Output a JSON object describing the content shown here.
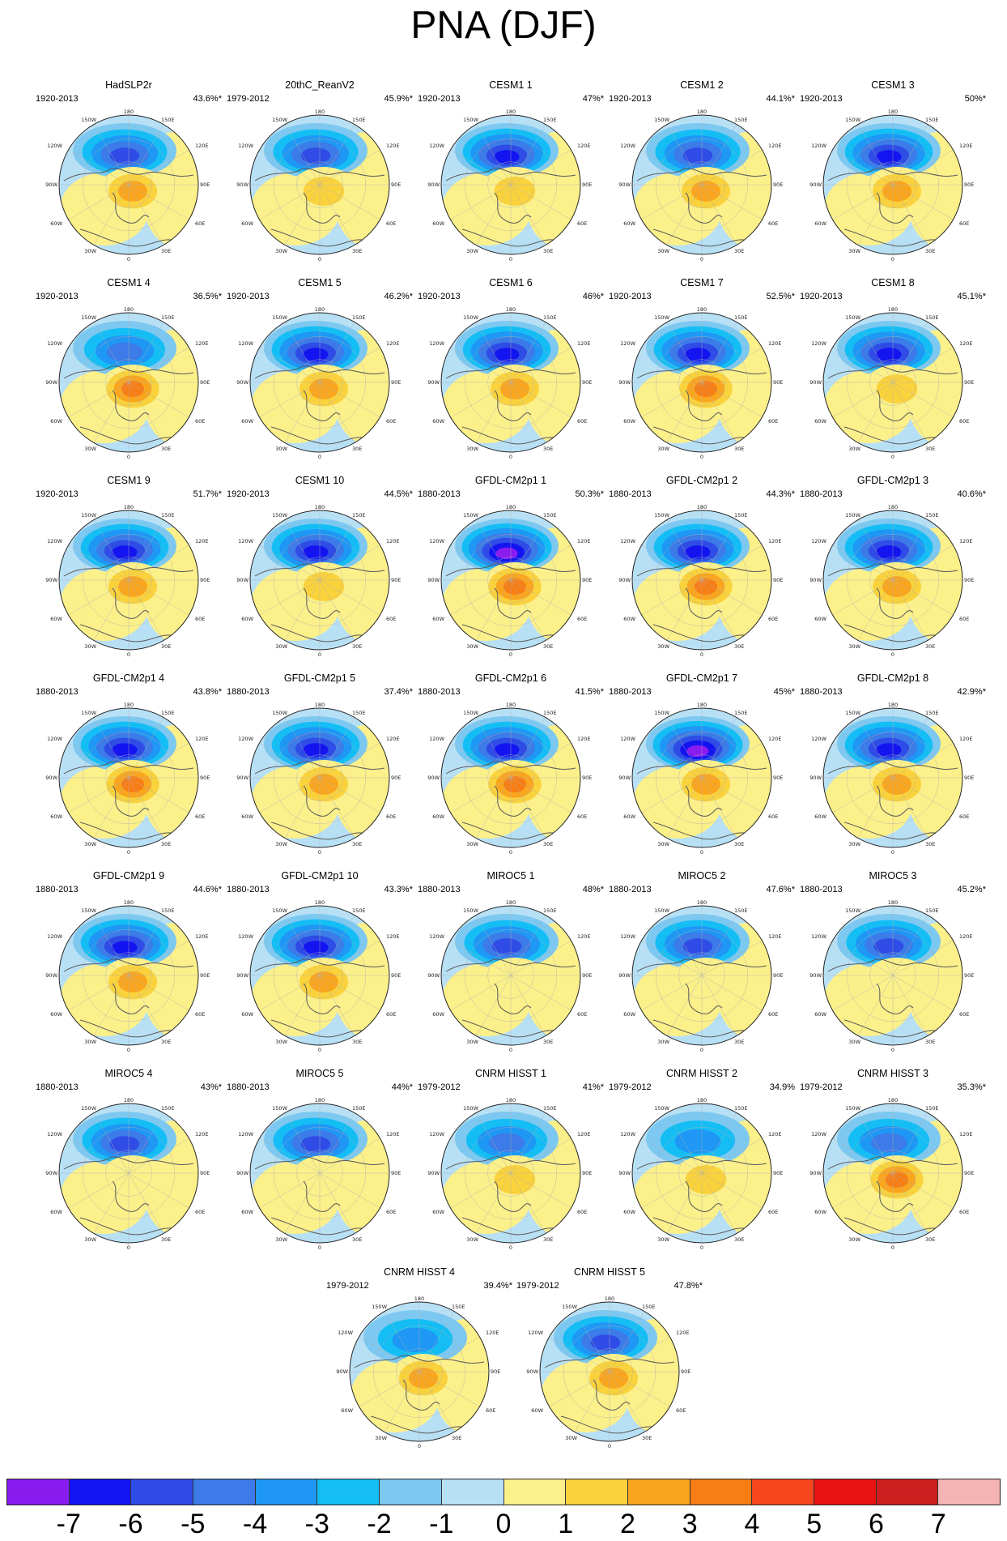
{
  "title": "PNA (DJF)",
  "colors": {
    "ocean_neutral": "#FBF08A",
    "coast": "#5a5a5a",
    "grid": "#b0b0b0",
    "palette": [
      "#8A1CF0",
      "#1414F0",
      "#2F4CE6",
      "#3C7BE8",
      "#1E97F5",
      "#14BEF5",
      "#7DC8F0",
      "#B8E0F5",
      "#FBF08A",
      "#FAD23C",
      "#FAA51E",
      "#F87D14",
      "#F5461E",
      "#E81414",
      "#CC1E1E",
      "#F5B4B4"
    ]
  },
  "colorbar": {
    "labels": [
      "-7",
      "-6",
      "-5",
      "-4",
      "-3",
      "-2",
      "-1",
      "0",
      "1",
      "2",
      "3",
      "4",
      "5",
      "6",
      "7"
    ]
  },
  "map_labels": {
    "lon": [
      "180",
      "150W",
      "150E",
      "120W",
      "120E",
      "90W",
      "90E",
      "60W",
      "60E",
      "30W",
      "30E",
      "0"
    ]
  },
  "panels": [
    {
      "name": "HadSLP2r",
      "period": "1920-2013",
      "pct": "43.6%*",
      "low": 2,
      "high": 10
    },
    {
      "name": "20thC_ReanV2",
      "period": "1979-2012",
      "pct": "45.9%*",
      "low": 2,
      "high": 9
    },
    {
      "name": "CESM1 1",
      "period": "1920-2013",
      "pct": "47%*",
      "low": 1,
      "high": 9
    },
    {
      "name": "CESM1 2",
      "period": "1920-2013",
      "pct": "44.1%*",
      "low": 2,
      "high": 10
    },
    {
      "name": "CESM1 3",
      "period": "1920-2013",
      "pct": "50%*",
      "low": 1,
      "high": 10
    },
    {
      "name": "CESM1 4",
      "period": "1920-2013",
      "pct": "36.5%*",
      "low": 3,
      "high": 11
    },
    {
      "name": "CESM1 5",
      "period": "1920-2013",
      "pct": "46.2%*",
      "low": 1,
      "high": 10
    },
    {
      "name": "CESM1 6",
      "period": "1920-2013",
      "pct": "46%*",
      "low": 1,
      "high": 10
    },
    {
      "name": "CESM1 7",
      "period": "1920-2013",
      "pct": "52.5%*",
      "low": 1,
      "high": 11
    },
    {
      "name": "CESM1 8",
      "period": "1920-2013",
      "pct": "45.1%*",
      "low": 1,
      "high": 9
    },
    {
      "name": "CESM1 9",
      "period": "1920-2013",
      "pct": "51.7%*",
      "low": 1,
      "high": 10
    },
    {
      "name": "CESM1 10",
      "period": "1920-2013",
      "pct": "44.5%*",
      "low": 1,
      "high": 9
    },
    {
      "name": "GFDL-CM2p1 1",
      "period": "1880-2013",
      "pct": "50.3%*",
      "low": 0,
      "high": 11
    },
    {
      "name": "GFDL-CM2p1 2",
      "period": "1880-2013",
      "pct": "44.3%*",
      "low": 1,
      "high": 11
    },
    {
      "name": "GFDL-CM2p1 3",
      "period": "1880-2013",
      "pct": "40.6%*",
      "low": 1,
      "high": 10
    },
    {
      "name": "GFDL-CM2p1 4",
      "period": "1880-2013",
      "pct": "43.8%*",
      "low": 1,
      "high": 11
    },
    {
      "name": "GFDL-CM2p1 5",
      "period": "1880-2013",
      "pct": "37.4%*",
      "low": 1,
      "high": 10
    },
    {
      "name": "GFDL-CM2p1 6",
      "period": "1880-2013",
      "pct": "41.5%*",
      "low": 1,
      "high": 11
    },
    {
      "name": "GFDL-CM2p1 7",
      "period": "1880-2013",
      "pct": "45%*",
      "low": 0,
      "high": 10
    },
    {
      "name": "GFDL-CM2p1 8",
      "period": "1880-2013",
      "pct": "42.9%*",
      "low": 1,
      "high": 10
    },
    {
      "name": "GFDL-CM2p1 9",
      "period": "1880-2013",
      "pct": "44.6%*",
      "low": 1,
      "high": 10
    },
    {
      "name": "GFDL-CM2p1 10",
      "period": "1880-2013",
      "pct": "43.3%*",
      "low": 1,
      "high": 10
    },
    {
      "name": "MIROC5 1",
      "period": "1880-2013",
      "pct": "48%*",
      "low": 2,
      "high": 8
    },
    {
      "name": "MIROC5 2",
      "period": "1880-2013",
      "pct": "47.6%*",
      "low": 2,
      "high": 8
    },
    {
      "name": "MIROC5 3",
      "period": "1880-2013",
      "pct": "45.2%*",
      "low": 2,
      "high": 8
    },
    {
      "name": "MIROC5 4",
      "period": "1880-2013",
      "pct": "43%*",
      "low": 2,
      "high": 8
    },
    {
      "name": "MIROC5 5",
      "period": "1880-2013",
      "pct": "44%*",
      "low": 2,
      "high": 8
    },
    {
      "name": "CNRM HISST 1",
      "period": "1979-2012",
      "pct": "41%*",
      "low": 3,
      "high": 9
    },
    {
      "name": "CNRM HISST 2",
      "period": "1979-2012",
      "pct": "34.9%",
      "low": 4,
      "high": 9
    },
    {
      "name": "CNRM HISST 3",
      "period": "1979-2012",
      "pct": "35.3%*",
      "low": 3,
      "high": 11
    },
    {
      "name": "CNRM HISST 4",
      "period": "1979-2012",
      "pct": "39.4%*",
      "low": 4,
      "high": 10
    },
    {
      "name": "CNRM HISST 5",
      "period": "1979-2012",
      "pct": "47.8%*",
      "low": 2,
      "high": 10
    }
  ]
}
